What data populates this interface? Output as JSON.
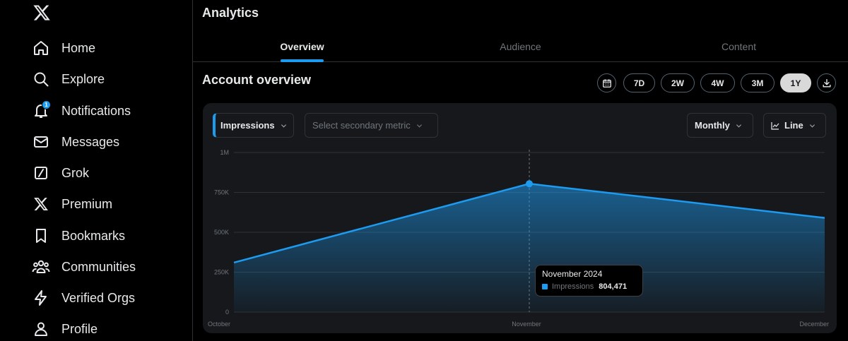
{
  "sidebar": {
    "items": [
      {
        "label": "Home",
        "icon": "home-icon"
      },
      {
        "label": "Explore",
        "icon": "search-icon"
      },
      {
        "label": "Notifications",
        "icon": "bell-icon",
        "badge": "1"
      },
      {
        "label": "Messages",
        "icon": "envelope-icon"
      },
      {
        "label": "Grok",
        "icon": "grok-icon"
      },
      {
        "label": "Premium",
        "icon": "x-logo-icon"
      },
      {
        "label": "Bookmarks",
        "icon": "bookmark-icon"
      },
      {
        "label": "Communities",
        "icon": "people-icon"
      },
      {
        "label": "Verified Orgs",
        "icon": "lightning-icon"
      },
      {
        "label": "Profile",
        "icon": "person-icon"
      }
    ]
  },
  "header": {
    "title": "Analytics"
  },
  "tabs": [
    {
      "label": "Overview",
      "active": true
    },
    {
      "label": "Audience",
      "active": false
    },
    {
      "label": "Content",
      "active": false
    }
  ],
  "overview": {
    "title": "Account overview",
    "ranges": [
      "7D",
      "2W",
      "4W",
      "3M",
      "1Y"
    ],
    "active_range": "1Y"
  },
  "controls": {
    "primary_metric": "Impressions",
    "secondary_metric_placeholder": "Select secondary metric",
    "granularity": "Monthly",
    "chart_style": "Line"
  },
  "tooltip": {
    "title": "November 2024",
    "series": "Impressions",
    "value": "804,471"
  },
  "colors": {
    "accent": "#1d9bf0",
    "background": "#000000",
    "card": "#16181c"
  },
  "chart_data": {
    "type": "area",
    "categories": [
      "October",
      "November",
      "December"
    ],
    "series": [
      {
        "name": "Impressions",
        "values": [
          310000,
          804471,
          590000
        ]
      }
    ],
    "y_ticks": [
      "0",
      "250K",
      "500K",
      "750K",
      "1M"
    ],
    "ylim": [
      0,
      1000000
    ],
    "grid": true,
    "highlight_index": 1
  }
}
